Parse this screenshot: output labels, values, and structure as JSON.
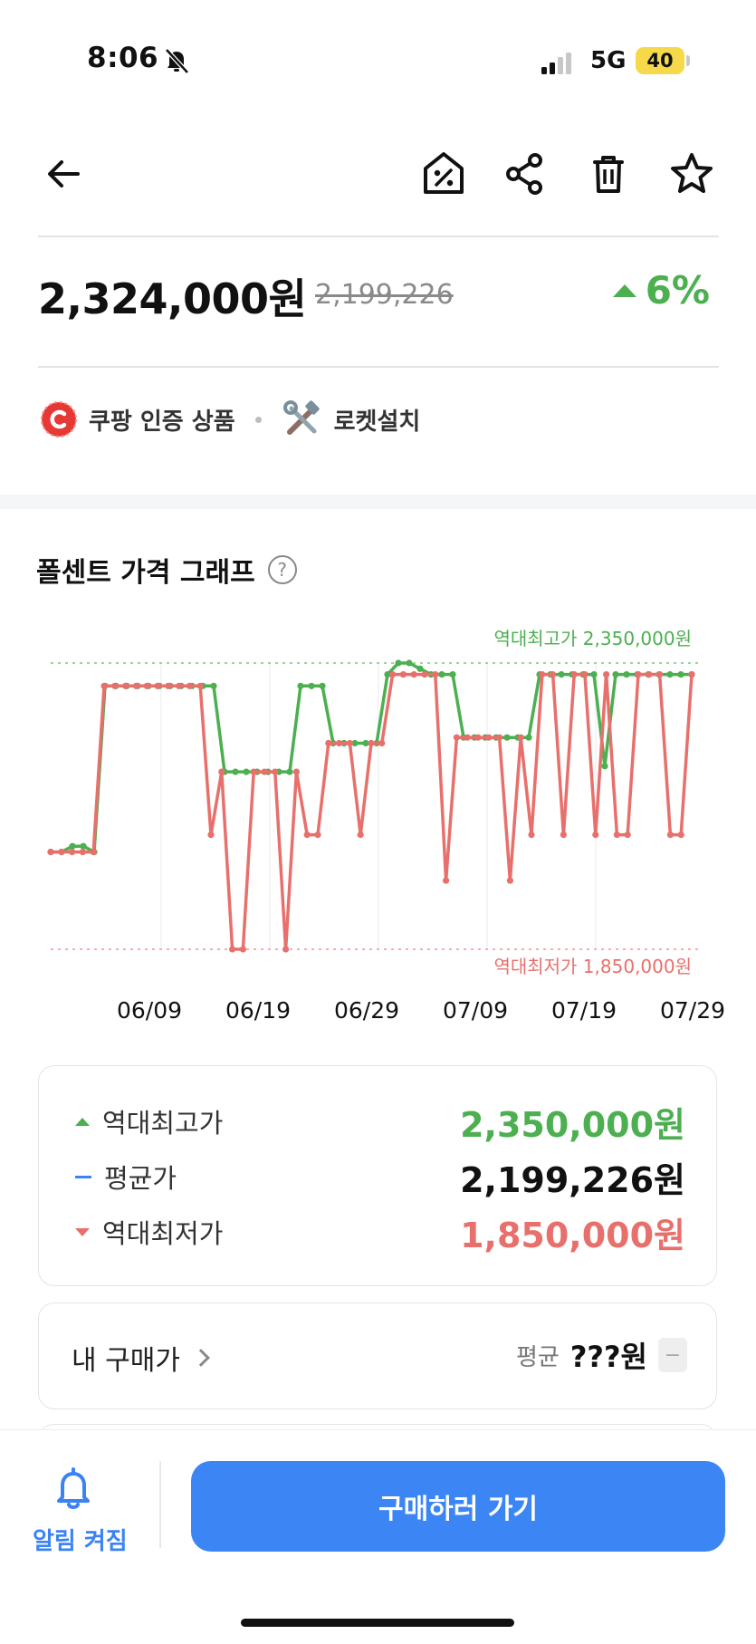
{
  "status": {
    "time": "8:06",
    "network": "5G",
    "battery": "40"
  },
  "product": {
    "price": "2,324,000원",
    "original_price": "2,199,226",
    "change": "6%",
    "badges": [
      "쿠팡 인증 상품",
      "로켓설치"
    ]
  },
  "graph": {
    "title": "폴센트 가격 그래프",
    "help": "?"
  },
  "chart_data": {
    "type": "line",
    "x_ticks": [
      "06/09",
      "06/19",
      "06/29",
      "07/09",
      "07/19",
      "07/29"
    ],
    "annotations": {
      "high": "역대최고가 2,350,000원",
      "low": "역대최저가 1,850,000원"
    },
    "ylim": [
      1850000,
      2350000
    ],
    "grid": true,
    "series": [
      {
        "color": "#4caf50",
        "values": [
          2020000,
          2020000,
          2030000,
          2030000,
          2020000,
          2310000,
          2310000,
          2310000,
          2310000,
          2310000,
          2310000,
          2310000,
          2310000,
          2310000,
          2310000,
          2310000,
          2160000,
          2160000,
          2160000,
          2160000,
          2160000,
          2160000,
          2160000,
          2310000,
          2310000,
          2310000,
          2210000,
          2210000,
          2210000,
          2210000,
          2210000,
          2330000,
          2350000,
          2350000,
          2340000,
          2330000,
          2330000,
          2330000,
          2220000,
          2220000,
          2220000,
          2220000,
          2220000,
          2220000,
          2220000,
          2330000,
          2330000,
          2330000,
          2330000,
          2330000,
          2330000,
          2170000,
          2330000,
          2330000,
          2330000,
          2330000,
          2330000,
          2330000,
          2330000,
          2330000
        ]
      },
      {
        "color": "#e8706c",
        "values": [
          2020000,
          2020000,
          2020000,
          2020000,
          2020000,
          2310000,
          2310000,
          2310000,
          2310000,
          2310000,
          2310000,
          2310000,
          2310000,
          2310000,
          2310000,
          2050000,
          2160000,
          1850000,
          1850000,
          2160000,
          2160000,
          2160000,
          1850000,
          2160000,
          2050000,
          2050000,
          2210000,
          2210000,
          2210000,
          2050000,
          2210000,
          2210000,
          2330000,
          2330000,
          2330000,
          2330000,
          2330000,
          1970000,
          2220000,
          2220000,
          2220000,
          2220000,
          2220000,
          1970000,
          2220000,
          2050000,
          2330000,
          2330000,
          2050000,
          2330000,
          2330000,
          2050000,
          2330000,
          2050000,
          2050000,
          2330000,
          2330000,
          2330000,
          2050000,
          2050000,
          2330000
        ]
      }
    ]
  },
  "stats": {
    "high_label": "역대최고가",
    "high_value": "2,350,000원",
    "avg_label": "평균가",
    "avg_value": "2,199,226원",
    "low_label": "역대최저가",
    "low_value": "1,850,000원"
  },
  "my_purchase": {
    "label": "내 구매가",
    "avg_label": "평균",
    "price": "???원",
    "minus": "−"
  },
  "bottom": {
    "alarm_label": "알림 켜짐",
    "buy_label": "구매하러 가기"
  },
  "colors": {
    "accent": "#3b85f5",
    "up": "#4caf50",
    "down": "#e8706c"
  }
}
